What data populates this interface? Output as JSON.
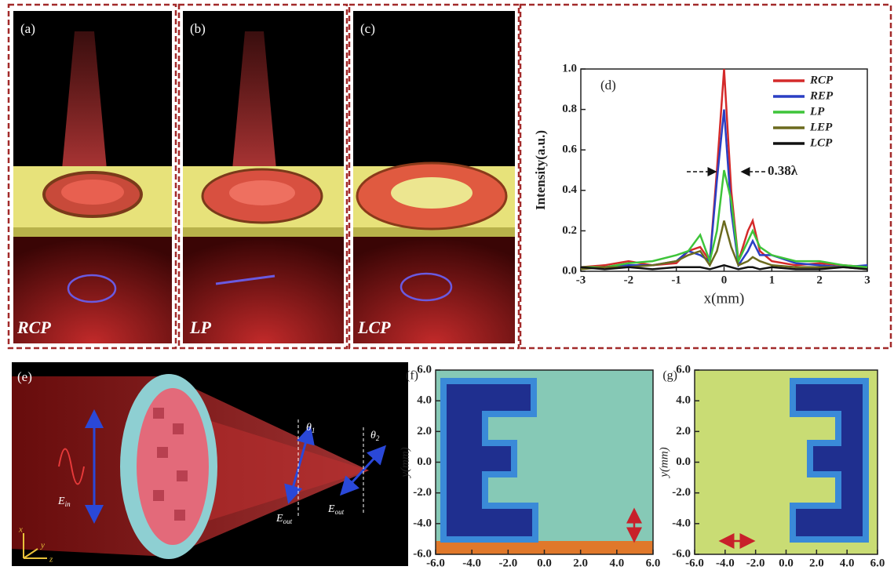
{
  "panels": {
    "a": {
      "label": "(a)",
      "caption": "RCP"
    },
    "b": {
      "label": "(b)",
      "caption": "LP"
    },
    "c": {
      "label": "(c)",
      "caption": "LCP"
    },
    "e": {
      "label": "(e)",
      "e_in": {
        "base": "E",
        "sub": "in"
      },
      "e_out_1": {
        "base": "E",
        "sub": "out"
      },
      "e_out_2": {
        "base": "E",
        "sub": "out"
      },
      "theta_1": {
        "base": "θ",
        "sub": "1"
      },
      "theta_2": {
        "base": "θ",
        "sub": "2"
      },
      "axes": [
        "x",
        "y",
        "z"
      ]
    }
  },
  "chart_data": [
    {
      "type": "line",
      "label": "(d)",
      "xlabel": "x(mm)",
      "ylabel": "Intensity(a.u.)",
      "annotation": "0.38λ",
      "x": [
        -3,
        -2.5,
        -2,
        -1.5,
        -1,
        -0.75,
        -0.5,
        -0.3,
        -0.15,
        0,
        0.15,
        0.3,
        0.5,
        0.6,
        0.75,
        1,
        1.5,
        2,
        2.5,
        3
      ],
      "series": [
        {
          "name": "RCP",
          "color": "#d42a2a",
          "values": [
            0.02,
            0.03,
            0.05,
            0.03,
            0.04,
            0.1,
            0.12,
            0.05,
            0.5,
            1.0,
            0.4,
            0.05,
            0.2,
            0.25,
            0.1,
            0.05,
            0.03,
            0.04,
            0.03,
            0.02
          ]
        },
        {
          "name": "REP",
          "color": "#2a3fc4",
          "values": [
            0.02,
            0.02,
            0.03,
            0.03,
            0.05,
            0.1,
            0.08,
            0.05,
            0.45,
            0.8,
            0.3,
            0.03,
            0.1,
            0.15,
            0.08,
            0.08,
            0.04,
            0.03,
            0.02,
            0.03
          ]
        },
        {
          "name": "LP",
          "color": "#3ec43a",
          "values": [
            0.02,
            0.02,
            0.04,
            0.05,
            0.08,
            0.1,
            0.18,
            0.05,
            0.2,
            0.5,
            0.35,
            0.05,
            0.15,
            0.2,
            0.12,
            0.08,
            0.05,
            0.05,
            0.03,
            0.02
          ]
        },
        {
          "name": "LEP",
          "color": "#6b6a1e",
          "values": [
            0.01,
            0.02,
            0.02,
            0.03,
            0.05,
            0.08,
            0.1,
            0.03,
            0.1,
            0.25,
            0.12,
            0.03,
            0.05,
            0.07,
            0.05,
            0.03,
            0.02,
            0.02,
            0.02,
            0.01
          ]
        },
        {
          "name": "LCP",
          "color": "#111111",
          "values": [
            0.02,
            0.01,
            0.02,
            0.01,
            0.02,
            0.02,
            0.02,
            0.01,
            0.02,
            0.03,
            0.02,
            0.01,
            0.02,
            0.02,
            0.01,
            0.02,
            0.01,
            0.01,
            0.02,
            0.01
          ]
        }
      ],
      "xlim": [
        -3,
        3
      ],
      "xticks": [
        -3,
        -2,
        -1,
        0,
        1,
        2,
        3
      ],
      "ylim": [
        0,
        1
      ],
      "yticks": [
        {
          "value": 0,
          "label": "0.0"
        },
        0.2,
        0.4,
        0.6,
        0.8,
        {
          "value": 1,
          "label": "1.0"
        }
      ]
    },
    {
      "type": "heatmap",
      "label": "(f)",
      "ylabel": "y(mm)",
      "xlim": [
        -6,
        6
      ],
      "ylim": [
        -6,
        6
      ],
      "xticks": [
        {
          "value": -6,
          "label": "-6.0"
        },
        {
          "value": -4,
          "label": "-4.0"
        },
        {
          "value": -2,
          "label": "-2.0"
        },
        {
          "value": 0,
          "label": "0.0"
        },
        {
          "value": 2,
          "label": "2.0"
        },
        {
          "value": 4,
          "label": "4.0"
        },
        {
          "value": 6,
          "label": "6.0"
        }
      ],
      "yticks": [
        {
          "value": -6,
          "label": "-6.0"
        },
        {
          "value": -4,
          "label": "-4.0"
        },
        {
          "value": -2,
          "label": "-2.0"
        },
        {
          "value": 0,
          "label": "0.0"
        },
        {
          "value": 2,
          "label": "2.0"
        },
        {
          "value": 4,
          "label": "4.0"
        },
        {
          "value": 6,
          "label": "6.0"
        }
      ]
    },
    {
      "type": "heatmap",
      "label": "(g)",
      "ylabel": "y(mm)",
      "xlim": [
        -6,
        6
      ],
      "ylim": [
        -6,
        6
      ],
      "xticks": [
        {
          "value": -6,
          "label": "-6.0"
        },
        {
          "value": -4,
          "label": "-4.0"
        },
        {
          "value": -2,
          "label": "-2.0"
        },
        {
          "value": 0,
          "label": "0.0"
        },
        {
          "value": 2,
          "label": "2.0"
        },
        {
          "value": 4,
          "label": "4.0"
        },
        {
          "value": 6,
          "label": "6.0"
        }
      ],
      "yticks": [
        {
          "value": -6,
          "label": "-6.0"
        },
        {
          "value": -4,
          "label": "-4.0"
        },
        {
          "value": -2,
          "label": "-2.0"
        },
        {
          "value": 0,
          "label": "0.0"
        },
        {
          "value": 2,
          "label": "2.0"
        },
        {
          "value": 4,
          "label": "4.0"
        },
        {
          "value": 6,
          "label": "6.0"
        }
      ]
    }
  ]
}
